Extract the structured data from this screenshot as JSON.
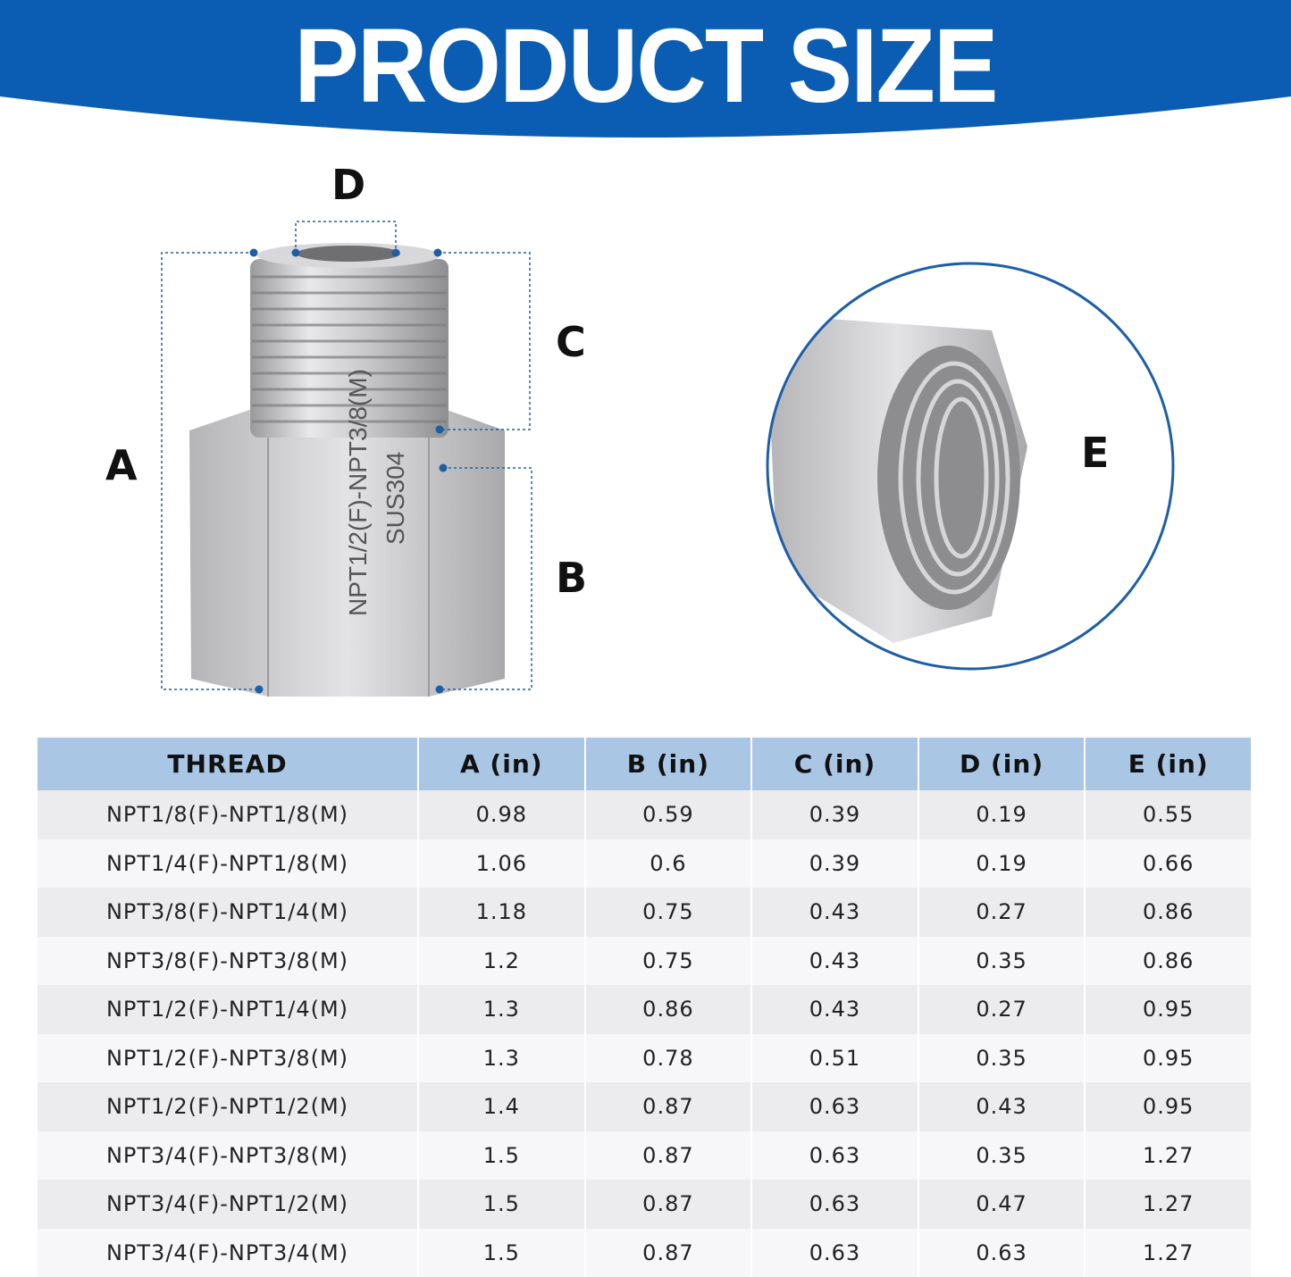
{
  "header": {
    "title": "PRODUCT SIZE",
    "color": "#0b5db3"
  },
  "diagram": {
    "labels": {
      "a": "A",
      "b": "B",
      "c": "C",
      "d": "D",
      "e": "E"
    },
    "engraving": {
      "line1": "NPT1/2(F)-NPT3/8(M)",
      "line2": "SUS304"
    },
    "accent_color": "#1d5ea6"
  },
  "table": {
    "columns": [
      "THREAD",
      "A (in)",
      "B (in)",
      "C (in)",
      "D (in)",
      "E (in)"
    ],
    "rows": [
      [
        "NPT1/8(F)-NPT1/8(M)",
        "0.98",
        "0.59",
        "0.39",
        "0.19",
        "0.55"
      ],
      [
        "NPT1/4(F)-NPT1/8(M)",
        "1.06",
        "0.6",
        "0.39",
        "0.19",
        "0.66"
      ],
      [
        "NPT3/8(F)-NPT1/4(M)",
        "1.18",
        "0.75",
        "0.43",
        "0.27",
        "0.86"
      ],
      [
        "NPT3/8(F)-NPT3/8(M)",
        "1.2",
        "0.75",
        "0.43",
        "0.35",
        "0.86"
      ],
      [
        "NPT1/2(F)-NPT1/4(M)",
        "1.3",
        "0.86",
        "0.43",
        "0.27",
        "0.95"
      ],
      [
        "NPT1/2(F)-NPT3/8(M)",
        "1.3",
        "0.78",
        "0.51",
        "0.35",
        "0.95"
      ],
      [
        "NPT1/2(F)-NPT1/2(M)",
        "1.4",
        "0.87",
        "0.63",
        "0.43",
        "0.95"
      ],
      [
        "NPT3/4(F)-NPT3/8(M)",
        "1.5",
        "0.87",
        "0.63",
        "0.35",
        "1.27"
      ],
      [
        "NPT3/4(F)-NPT1/2(M)",
        "1.5",
        "0.87",
        "0.63",
        "0.47",
        "1.27"
      ],
      [
        "NPT3/4(F)-NPT3/4(M)",
        "1.5",
        "0.87",
        "0.63",
        "0.63",
        "1.27"
      ]
    ]
  }
}
